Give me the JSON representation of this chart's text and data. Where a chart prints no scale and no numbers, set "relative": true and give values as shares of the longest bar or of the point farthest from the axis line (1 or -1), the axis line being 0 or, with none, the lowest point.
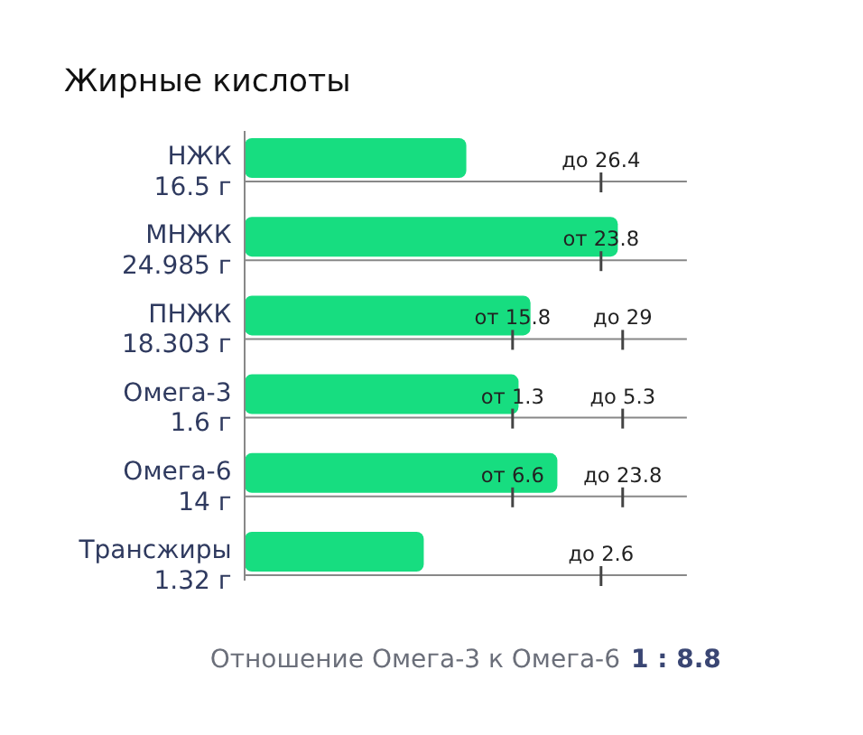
{
  "chart_data": {
    "type": "bar",
    "orientation": "horizontal",
    "relative": true,
    "title": "Жирные кислоты",
    "color": "#17dd80",
    "categories": [
      "НЖК\n16.5 г",
      "МНЖК\n24.985 г",
      "ПНЖК\n18.303 г",
      "Омега-3\n1.6 г",
      "Омега-6\n14 г",
      "Трансжиры\n1.32 г"
    ],
    "values": [
      0.594,
      1,
      0.766,
      0.734,
      0.838,
      0.48
    ],
    "annotations": [
      "до 26.4",
      "от 23.8",
      "от 15.8",
      "от 1.3",
      "от 6.6",
      "до 29",
      "до 5.3",
      "до 23.8",
      "до 2.6",
      "Отношение Омега-3 к Омега-6",
      "1 : 8.8"
    ]
  }
}
